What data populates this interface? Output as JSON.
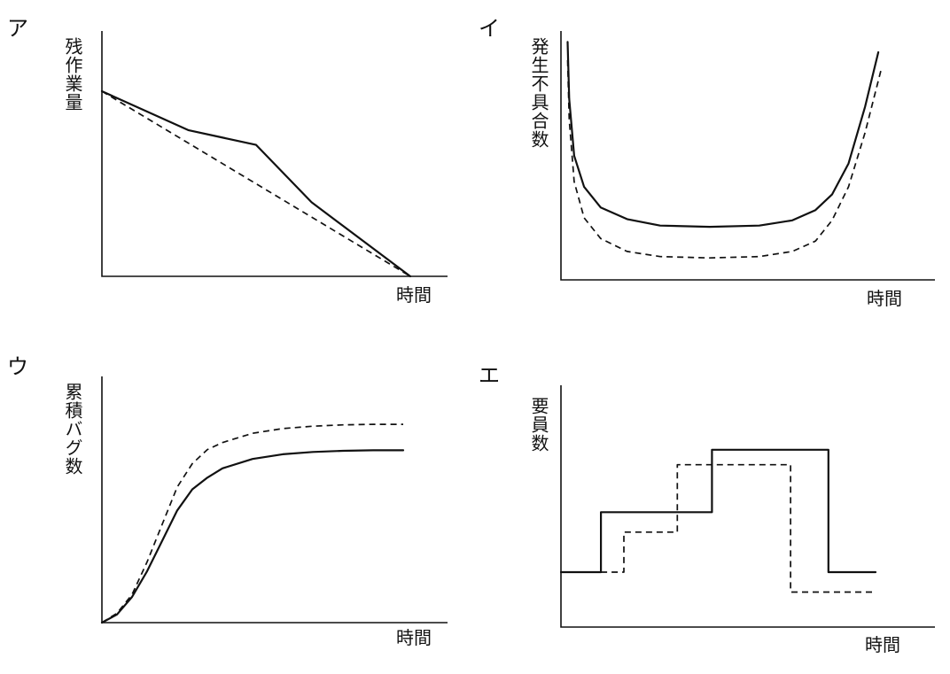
{
  "chart_data": [
    {
      "panel": "ア",
      "type": "line",
      "ylabel": "残作業量",
      "xlabel": "時間",
      "xlim": [
        0,
        1
      ],
      "ylim": [
        0,
        1
      ],
      "series": [
        {
          "style": "solid",
          "x": [
            0,
            0.28,
            0.5,
            0.68,
            1.0
          ],
          "y": [
            1.0,
            0.79,
            0.71,
            0.4,
            0.0
          ]
        },
        {
          "style": "dashed",
          "x": [
            0,
            1.0
          ],
          "y": [
            1.0,
            0.0
          ]
        }
      ]
    },
    {
      "panel": "イ",
      "type": "line",
      "ylabel": "発生不具合数",
      "xlabel": "時間",
      "xlim": [
        0,
        1
      ],
      "ylim": [
        0,
        1
      ],
      "series": [
        {
          "style": "solid",
          "x": [
            0.02,
            0.025,
            0.04,
            0.07,
            0.12,
            0.2,
            0.3,
            0.45,
            0.6,
            0.7,
            0.77,
            0.82,
            0.87,
            0.92,
            0.96
          ],
          "y": [
            0.92,
            0.7,
            0.48,
            0.36,
            0.28,
            0.235,
            0.21,
            0.205,
            0.21,
            0.23,
            0.27,
            0.33,
            0.45,
            0.67,
            0.88
          ]
        },
        {
          "style": "dashed",
          "x": [
            0.02,
            0.025,
            0.04,
            0.07,
            0.12,
            0.2,
            0.3,
            0.45,
            0.6,
            0.7,
            0.77,
            0.82,
            0.87,
            0.92,
            0.97
          ],
          "y": [
            0.85,
            0.62,
            0.38,
            0.24,
            0.16,
            0.11,
            0.09,
            0.085,
            0.09,
            0.11,
            0.15,
            0.23,
            0.36,
            0.57,
            0.82
          ]
        }
      ]
    },
    {
      "panel": "ウ",
      "type": "line",
      "ylabel": "累積バグ数",
      "xlabel": "時間",
      "xlim": [
        0,
        1
      ],
      "ylim": [
        0,
        1
      ],
      "series": [
        {
          "style": "solid",
          "x": [
            0,
            0.05,
            0.1,
            0.15,
            0.2,
            0.25,
            0.3,
            0.35,
            0.4,
            0.5,
            0.6,
            0.7,
            0.8,
            0.9,
            1.0
          ],
          "y": [
            0,
            0.035,
            0.11,
            0.22,
            0.35,
            0.48,
            0.57,
            0.62,
            0.66,
            0.7,
            0.72,
            0.73,
            0.735,
            0.737,
            0.737
          ]
        },
        {
          "style": "dashed",
          "x": [
            0,
            0.05,
            0.1,
            0.15,
            0.2,
            0.25,
            0.3,
            0.35,
            0.4,
            0.5,
            0.6,
            0.7,
            0.8,
            0.9,
            1.0
          ],
          "y": [
            0,
            0.04,
            0.12,
            0.26,
            0.42,
            0.58,
            0.68,
            0.74,
            0.77,
            0.81,
            0.83,
            0.84,
            0.846,
            0.848,
            0.848
          ]
        }
      ]
    },
    {
      "panel": "エ",
      "type": "line",
      "ylabel": "要員数",
      "xlabel": "時間",
      "xlim": [
        0,
        1
      ],
      "ylim": [
        0,
        1
      ],
      "series": [
        {
          "style": "solid",
          "step": true,
          "x": [
            0,
            0.127,
            0.127,
            0.48,
            0.48,
            0.85,
            0.85,
            1.0
          ],
          "y": [
            0.22,
            0.22,
            0.46,
            0.46,
            0.71,
            0.71,
            0.22,
            0.22
          ]
        },
        {
          "style": "dashed",
          "step": true,
          "x": [
            0.127,
            0.2,
            0.2,
            0.37,
            0.37,
            0.73,
            0.73,
            1.0
          ],
          "y": [
            0.22,
            0.22,
            0.38,
            0.38,
            0.65,
            0.65,
            0.14,
            0.14
          ]
        }
      ]
    }
  ]
}
